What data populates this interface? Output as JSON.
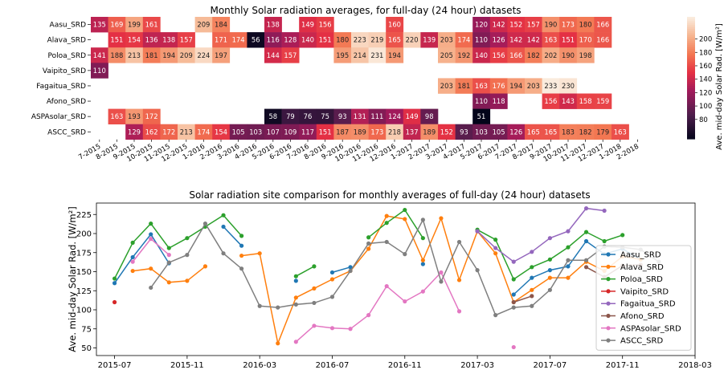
{
  "chart_data": [
    {
      "type": "heatmap",
      "title": "Monthly Solar radiation averages, for full-day (24 hour) datasets",
      "colorbar_label": "Ave. mid-day Solar Rad. [W/m²]",
      "colorbar_ticks": [
        80,
        100,
        120,
        140,
        160,
        180,
        200
      ],
      "vmin": 51,
      "vmax": 233,
      "x_labels": [
        "7-2015",
        "8-2015",
        "9-2015",
        "10-2015",
        "11-2015",
        "12-2015",
        "1-2016",
        "2-2016",
        "3-2016",
        "4-2016",
        "5-2016",
        "6-2016",
        "7-2016",
        "8-2016",
        "9-2016",
        "10-2016",
        "11-2016",
        "12-2016",
        "1-2017",
        "2-2017",
        "3-2017",
        "4-2017",
        "5-2017",
        "6-2017",
        "7-2017",
        "8-2017",
        "9-2017",
        "10-2017",
        "11-2017",
        "12-2017",
        "1-2018",
        "2-2018"
      ],
      "y_labels": [
        "Aasu_SRD",
        "Alava_SRD",
        "Poloa_SRD",
        "Vaipito_SRD",
        "Fagaitua_SRD",
        "Afono_SRD",
        "ASPAsolar_SRD",
        "ASCC_SRD"
      ],
      "columns": [
        "2015-07",
        "2015-08",
        "2015-09",
        "2015-10",
        "2015-11",
        "2015-12",
        "2016-01",
        "2016-02",
        "2016-03",
        "2016-04",
        "2016-05",
        "2016-06",
        "2016-07",
        "2016-08",
        "2016-09",
        "2016-10",
        "2016-11",
        "2016-12",
        "2017-01",
        "2017-02",
        "2017-03",
        "2017-04",
        "2017-05",
        "2017-06",
        "2017-07",
        "2017-08",
        "2017-09",
        "2017-10",
        "2017-11",
        "2017-12",
        "2018-01",
        "2018-02"
      ],
      "values": [
        [
          135,
          169,
          199,
          161,
          null,
          null,
          209,
          184,
          null,
          null,
          138,
          null,
          149,
          156,
          null,
          null,
          null,
          160,
          null,
          null,
          null,
          null,
          120,
          142,
          152,
          157,
          190,
          173,
          180,
          166,
          null,
          null
        ],
        [
          null,
          151,
          154,
          136,
          138,
          157,
          null,
          171,
          174,
          56,
          116,
          128,
          140,
          151,
          180,
          223,
          219,
          165,
          220,
          139,
          203,
          174,
          110,
          126,
          142,
          142,
          163,
          151,
          170,
          166,
          null,
          null
        ],
        [
          141,
          188,
          213,
          181,
          194,
          209,
          224,
          197,
          null,
          null,
          144,
          157,
          null,
          null,
          195,
          214,
          231,
          194,
          null,
          null,
          205,
          192,
          140,
          156,
          166,
          182,
          202,
          190,
          198,
          null,
          null,
          null
        ],
        [
          110,
          null,
          null,
          null,
          null,
          null,
          null,
          null,
          null,
          null,
          null,
          null,
          null,
          null,
          null,
          null,
          null,
          null,
          null,
          null,
          null,
          null,
          null,
          null,
          null,
          null,
          null,
          null,
          null,
          null,
          null,
          null
        ],
        [
          null,
          null,
          null,
          null,
          null,
          null,
          null,
          null,
          null,
          null,
          null,
          null,
          null,
          null,
          null,
          null,
          null,
          null,
          null,
          null,
          203,
          181,
          163,
          176,
          194,
          203,
          233,
          230,
          null,
          null,
          null,
          null
        ],
        [
          null,
          null,
          null,
          null,
          null,
          null,
          null,
          null,
          null,
          null,
          null,
          null,
          null,
          null,
          null,
          null,
          null,
          null,
          null,
          null,
          null,
          null,
          110,
          118,
          null,
          null,
          156,
          143,
          158,
          159,
          null,
          null
        ],
        [
          null,
          163,
          193,
          172,
          null,
          null,
          null,
          null,
          null,
          null,
          58,
          79,
          76,
          75,
          93,
          131,
          111,
          124,
          149,
          98,
          null,
          null,
          51,
          null,
          null,
          null,
          null,
          null,
          null,
          null,
          null,
          null
        ],
        [
          null,
          null,
          129,
          162,
          172,
          213,
          174,
          154,
          105,
          103,
          107,
          109,
          117,
          151,
          187,
          189,
          173,
          218,
          137,
          189,
          152,
          93,
          103,
          105,
          126,
          165,
          165,
          183,
          182,
          179,
          163,
          null
        ]
      ]
    },
    {
      "type": "line",
      "title": "Solar radiation site comparison for monthly averages of full-day (24 hour) datasets",
      "xlabel": "",
      "ylabel": "Ave. mid-day Solar Rad. [W/m²]",
      "x_ticks": [
        "2015-07",
        "2015-11",
        "2016-03",
        "2016-07",
        "2016-11",
        "2017-03",
        "2017-07",
        "2017-11",
        "2018-03"
      ],
      "y_ticks": [
        50,
        75,
        100,
        125,
        150,
        175,
        200,
        225
      ],
      "ylim": [
        40,
        240
      ],
      "xlim": [
        "2015-06",
        "2018-03"
      ],
      "legend_position": "right",
      "series": [
        {
          "name": "Aasu_SRD",
          "color": "#1f77b4",
          "values": [
            135,
            169,
            199,
            161,
            null,
            null,
            209,
            184,
            null,
            null,
            138,
            null,
            149,
            156,
            null,
            null,
            null,
            160,
            null,
            null,
            null,
            null,
            120,
            142,
            152,
            157,
            190,
            173,
            180,
            166,
            null,
            null
          ]
        },
        {
          "name": "Alava_SRD",
          "color": "#ff7f0e",
          "values": [
            null,
            151,
            154,
            136,
            138,
            157,
            null,
            171,
            174,
            56,
            116,
            128,
            140,
            151,
            180,
            223,
            219,
            165,
            220,
            139,
            203,
            174,
            110,
            126,
            142,
            142,
            163,
            151,
            170,
            166,
            null,
            null
          ]
        },
        {
          "name": "Poloa_SRD",
          "color": "#2ca02c",
          "values": [
            141,
            188,
            213,
            181,
            194,
            209,
            224,
            197,
            null,
            null,
            144,
            157,
            null,
            null,
            195,
            214,
            231,
            194,
            null,
            null,
            205,
            192,
            140,
            156,
            166,
            182,
            202,
            190,
            198,
            null,
            null,
            null
          ]
        },
        {
          "name": "Vaipito_SRD",
          "color": "#d62728",
          "values": [
            110,
            null,
            null,
            null,
            null,
            null,
            null,
            null,
            null,
            null,
            null,
            null,
            null,
            null,
            null,
            null,
            null,
            null,
            null,
            null,
            null,
            null,
            null,
            null,
            null,
            null,
            null,
            null,
            null,
            null,
            null,
            null
          ]
        },
        {
          "name": "Fagaitua_SRD",
          "color": "#9467bd",
          "values": [
            null,
            null,
            null,
            null,
            null,
            null,
            null,
            null,
            null,
            null,
            null,
            null,
            null,
            null,
            null,
            null,
            null,
            null,
            null,
            null,
            203,
            181,
            163,
            176,
            194,
            203,
            233,
            230,
            null,
            null,
            null,
            null
          ]
        },
        {
          "name": "Afono_SRD",
          "color": "#8c564b",
          "values": [
            null,
            null,
            null,
            null,
            null,
            null,
            null,
            null,
            null,
            null,
            null,
            null,
            null,
            null,
            null,
            null,
            null,
            null,
            null,
            null,
            null,
            null,
            110,
            118,
            null,
            null,
            156,
            143,
            158,
            159,
            null,
            null
          ]
        },
        {
          "name": "ASPAsolar_SRD",
          "color": "#e377c2",
          "values": [
            null,
            163,
            193,
            172,
            null,
            null,
            null,
            null,
            null,
            null,
            58,
            79,
            76,
            75,
            93,
            131,
            111,
            124,
            149,
            98,
            null,
            null,
            51,
            null,
            null,
            null,
            null,
            null,
            null,
            null,
            null,
            null
          ]
        },
        {
          "name": "ASCC_SRD",
          "color": "#7f7f7f",
          "values": [
            null,
            null,
            129,
            162,
            172,
            213,
            174,
            154,
            105,
            103,
            107,
            109,
            117,
            151,
            187,
            189,
            173,
            218,
            137,
            189,
            152,
            93,
            103,
            105,
            126,
            165,
            165,
            183,
            182,
            179,
            163,
            null
          ]
        }
      ]
    }
  ]
}
